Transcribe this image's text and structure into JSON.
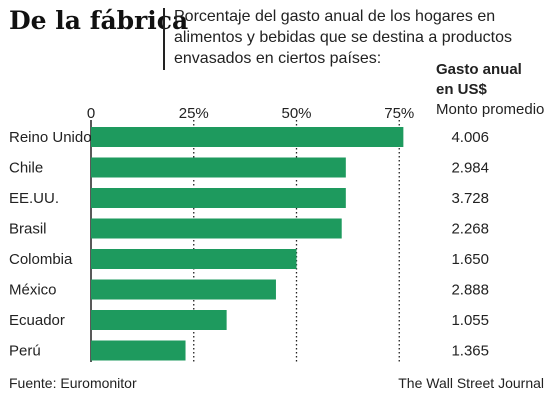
{
  "header": {
    "title": "De la fábrica",
    "subtitle": "Porcentaje del gasto anual de los hogares en alimentos y bebidas que se destina a productos envasados en ciertos países:",
    "amount_header_line1": "Gasto anual",
    "amount_header_line2": "en US$",
    "amount_header_line3": "Monto promedio"
  },
  "chart_data": {
    "type": "bar",
    "orientation": "horizontal",
    "categories": [
      "Reino Unido",
      "Chile",
      "EE.UU.",
      "Brasil",
      "Colombia",
      "México",
      "Ecuador",
      "Perú"
    ],
    "values": [
      76,
      62,
      62,
      61,
      50,
      45,
      33,
      23
    ],
    "amounts": [
      "4.006",
      "2.984",
      "3.728",
      "2.268",
      "1.650",
      "2.888",
      "1.055",
      "1.365"
    ],
    "ticks": [
      0,
      25,
      50,
      75
    ],
    "tick_labels": [
      "0",
      "25%",
      "50%",
      "75%"
    ],
    "xlim": [
      0,
      83
    ],
    "grid": "dotted vertical at 25, 50, 75",
    "bar_color": "#1e9a5e"
  },
  "footer": {
    "source": "Fuente: Euromonitor",
    "credit": "The Wall Street Journal"
  }
}
